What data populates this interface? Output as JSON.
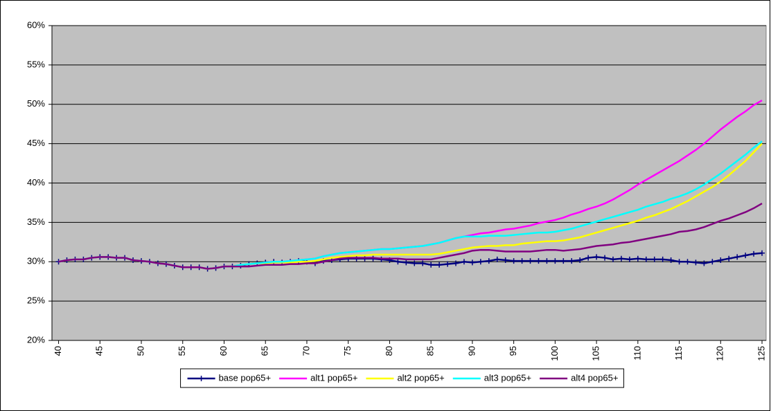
{
  "chart_data": {
    "type": "line",
    "x": [
      40,
      41,
      42,
      43,
      44,
      45,
      46,
      47,
      48,
      49,
      50,
      51,
      52,
      53,
      54,
      55,
      56,
      57,
      58,
      59,
      60,
      61,
      62,
      63,
      64,
      65,
      66,
      67,
      68,
      69,
      70,
      71,
      72,
      73,
      74,
      75,
      76,
      77,
      78,
      79,
      80,
      81,
      82,
      83,
      84,
      85,
      86,
      87,
      88,
      89,
      90,
      91,
      92,
      93,
      94,
      95,
      96,
      97,
      98,
      99,
      100,
      101,
      102,
      103,
      104,
      105,
      106,
      107,
      108,
      109,
      110,
      111,
      112,
      113,
      114,
      115,
      116,
      117,
      118,
      119,
      120,
      121,
      122,
      123,
      124,
      125
    ],
    "xlim": [
      39.2,
      125.5
    ],
    "xticks": [
      40,
      45,
      50,
      55,
      60,
      65,
      70,
      75,
      80,
      85,
      90,
      95,
      100,
      105,
      110,
      115,
      120,
      125
    ],
    "ylim": [
      20,
      60
    ],
    "yticks": [
      {
        "value": 20,
        "label": "20%"
      },
      {
        "value": 25,
        "label": "25%"
      },
      {
        "value": 30,
        "label": "30%"
      },
      {
        "value": 35,
        "label": "35%"
      },
      {
        "value": 40,
        "label": "40%"
      },
      {
        "value": 45,
        "label": "45%"
      },
      {
        "value": 50,
        "label": "50%"
      },
      {
        "value": 55,
        "label": "55%"
      },
      {
        "value": 60,
        "label": "60%"
      }
    ],
    "grid": true,
    "legend": "bottom",
    "series": [
      {
        "name": "base pop65+",
        "color": "#000080",
        "marker": "plus",
        "values": [
          30,
          30.2,
          30.3,
          30.3,
          30.5,
          30.6,
          30.6,
          30.5,
          30.5,
          30.2,
          30.1,
          30,
          29.8,
          29.7,
          29.5,
          29.3,
          29.3,
          29.3,
          29.1,
          29.2,
          29.4,
          29.4,
          29.5,
          29.7,
          29.8,
          29.9,
          30,
          29.9,
          30,
          30.1,
          30,
          29.8,
          30.1,
          30.2,
          30.3,
          30.4,
          30.4,
          30.4,
          30.4,
          30.3,
          30.2,
          30,
          29.9,
          29.8,
          29.8,
          29.6,
          29.6,
          29.7,
          29.8,
          30,
          29.9,
          30,
          30.1,
          30.3,
          30.2,
          30.1,
          30.1,
          30.1,
          30.1,
          30.1,
          30.1,
          30.1,
          30.1,
          30.2,
          30.5,
          30.6,
          30.5,
          30.3,
          30.4,
          30.3,
          30.4,
          30.3,
          30.3,
          30.3,
          30.2,
          30,
          30,
          29.9,
          29.8,
          30,
          30.2,
          30.4,
          30.6,
          30.8,
          31,
          31.1
        ]
      },
      {
        "name": "alt1 pop65+",
        "color": "#ff00ff",
        "values": [
          30,
          30.2,
          30.3,
          30.3,
          30.5,
          30.6,
          30.6,
          30.5,
          30.5,
          30.2,
          30.1,
          30,
          29.8,
          29.7,
          29.5,
          29.3,
          29.3,
          29.3,
          29.1,
          29.2,
          29.4,
          29.4,
          29.6,
          29.7,
          29.8,
          29.9,
          30,
          30,
          30.1,
          30.2,
          30.3,
          30.4,
          30.7,
          30.9,
          31.1,
          31.2,
          31.3,
          31.4,
          31.5,
          31.6,
          31.6,
          31.7,
          31.8,
          31.9,
          32,
          32.2,
          32.4,
          32.7,
          33,
          33.2,
          33.4,
          33.6,
          33.7,
          33.9,
          34.1,
          34.2,
          34.4,
          34.6,
          34.9,
          35.1,
          35.3,
          35.6,
          36,
          36.3,
          36.7,
          37,
          37.4,
          37.9,
          38.5,
          39.1,
          39.8,
          40.4,
          41,
          41.6,
          42.2,
          42.8,
          43.5,
          44.2,
          45,
          45.9,
          46.8,
          47.6,
          48.4,
          49.1,
          49.9,
          50.5
        ]
      },
      {
        "name": "alt2 pop65+",
        "color": "#ffff00",
        "values": [
          30,
          30.2,
          30.3,
          30.3,
          30.5,
          30.6,
          30.6,
          30.5,
          30.5,
          30.2,
          30.1,
          30,
          29.8,
          29.7,
          29.5,
          29.3,
          29.3,
          29.3,
          29.1,
          29.2,
          29.4,
          29.4,
          29.6,
          29.7,
          29.8,
          29.8,
          29.9,
          29.9,
          29.9,
          30,
          30,
          30.1,
          30.3,
          30.5,
          30.6,
          30.7,
          30.8,
          30.8,
          30.9,
          30.9,
          30.9,
          30.9,
          30.9,
          30.9,
          30.9,
          30.9,
          31,
          31.2,
          31.4,
          31.6,
          31.8,
          31.9,
          32,
          32,
          32.1,
          32.1,
          32.3,
          32.4,
          32.5,
          32.6,
          32.6,
          32.7,
          32.9,
          33.1,
          33.4,
          33.7,
          34,
          34.3,
          34.6,
          34.9,
          35.2,
          35.6,
          35.9,
          36.3,
          36.7,
          37.2,
          37.7,
          38.3,
          38.9,
          39.5,
          40.2,
          41,
          41.9,
          42.8,
          43.9,
          45
        ]
      },
      {
        "name": "alt3 pop65+",
        "color": "#00ffff",
        "values": [
          30,
          30.2,
          30.3,
          30.3,
          30.5,
          30.6,
          30.6,
          30.5,
          30.5,
          30.2,
          30.1,
          30,
          29.8,
          29.7,
          29.5,
          29.3,
          29.3,
          29.3,
          29.1,
          29.2,
          29.4,
          29.4,
          29.6,
          29.7,
          29.8,
          29.9,
          30,
          30,
          30.1,
          30.2,
          30.3,
          30.4,
          30.7,
          30.9,
          31.1,
          31.2,
          31.3,
          31.4,
          31.5,
          31.6,
          31.6,
          31.7,
          31.8,
          31.9,
          32,
          32.2,
          32.4,
          32.7,
          33,
          33.2,
          33.2,
          33.2,
          33.3,
          33.3,
          33.3,
          33.4,
          33.5,
          33.6,
          33.7,
          33.7,
          33.8,
          34,
          34.2,
          34.5,
          34.8,
          35.1,
          35.4,
          35.7,
          36,
          36.3,
          36.6,
          37,
          37.3,
          37.6,
          38,
          38.3,
          38.7,
          39.2,
          39.8,
          40.5,
          41.2,
          42,
          42.8,
          43.6,
          44.5,
          45.3
        ]
      },
      {
        "name": "alt4 pop65+",
        "color": "#800080",
        "values": [
          30,
          30.2,
          30.3,
          30.3,
          30.5,
          30.6,
          30.6,
          30.5,
          30.5,
          30.2,
          30.1,
          30,
          29.8,
          29.7,
          29.5,
          29.3,
          29.3,
          29.3,
          29.1,
          29.2,
          29.4,
          29.4,
          29.4,
          29.4,
          29.5,
          29.6,
          29.6,
          29.6,
          29.7,
          29.7,
          29.8,
          29.8,
          30,
          30.2,
          30.4,
          30.5,
          30.5,
          30.5,
          30.5,
          30.4,
          30.4,
          30.4,
          30.3,
          30.3,
          30.3,
          30.3,
          30.5,
          30.7,
          30.9,
          31.1,
          31.4,
          31.5,
          31.5,
          31.4,
          31.3,
          31.3,
          31.3,
          31.3,
          31.4,
          31.5,
          31.5,
          31.4,
          31.5,
          31.6,
          31.8,
          32,
          32.1,
          32.2,
          32.4,
          32.5,
          32.7,
          32.9,
          33.1,
          33.3,
          33.5,
          33.8,
          33.9,
          34.1,
          34.4,
          34.8,
          35.2,
          35.5,
          35.9,
          36.3,
          36.8,
          37.4
        ]
      }
    ]
  }
}
